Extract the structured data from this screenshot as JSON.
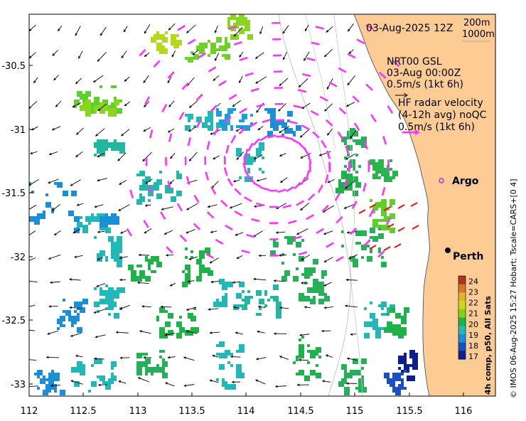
{
  "map": {
    "lon_ticks": [
      "112",
      "112.5",
      "113",
      "113.5",
      "114",
      "114.5",
      "115",
      "115.5",
      "116"
    ],
    "lat_ticks": [
      "-30.5",
      "-31",
      "-31.5",
      "-32",
      "-32.5",
      "-33"
    ],
    "lon_range": [
      112,
      116.3
    ],
    "lat_range": [
      -33.2,
      -30.0
    ]
  },
  "header": {
    "datetime": "03-Aug-2025 12Z",
    "depth_200": "200m",
    "depth_1000": "1000m"
  },
  "legend": {
    "gsl_line1": "NRT00 GSL",
    "gsl_line2": "03-Aug 00:00Z",
    "gsl_line3": "0.5m/s (1kt 6h)",
    "hf_line1": "HF radar velocity",
    "hf_line2": "(4-12h avg) noQC",
    "hf_line3": "0.5m/s (1kt 6h)"
  },
  "places": {
    "argo": "Argo",
    "perth": "Perth"
  },
  "colorbar": {
    "title": "4h comp, p50, All Sats",
    "ticks": [
      "24",
      "23",
      "22",
      "21",
      "20",
      "19",
      "18",
      "17"
    ],
    "colors": [
      "#b0331c",
      "#d6762a",
      "#e0b52a",
      "#c9d91e",
      "#7fd416",
      "#1fb24a",
      "#22b8b8",
      "#1a8fd6",
      "#1c4fc0",
      "#0c1f8a"
    ]
  },
  "credit": "© IMOS 06-Aug-2025 15:27 Hobart; Tscale=CARS+[0 4]",
  "colors": {
    "land": "#fdcb94",
    "hf_arrows": "#ff33ff",
    "argo_marker": "#dd22dd",
    "wave_red": "#ee1111"
  }
}
